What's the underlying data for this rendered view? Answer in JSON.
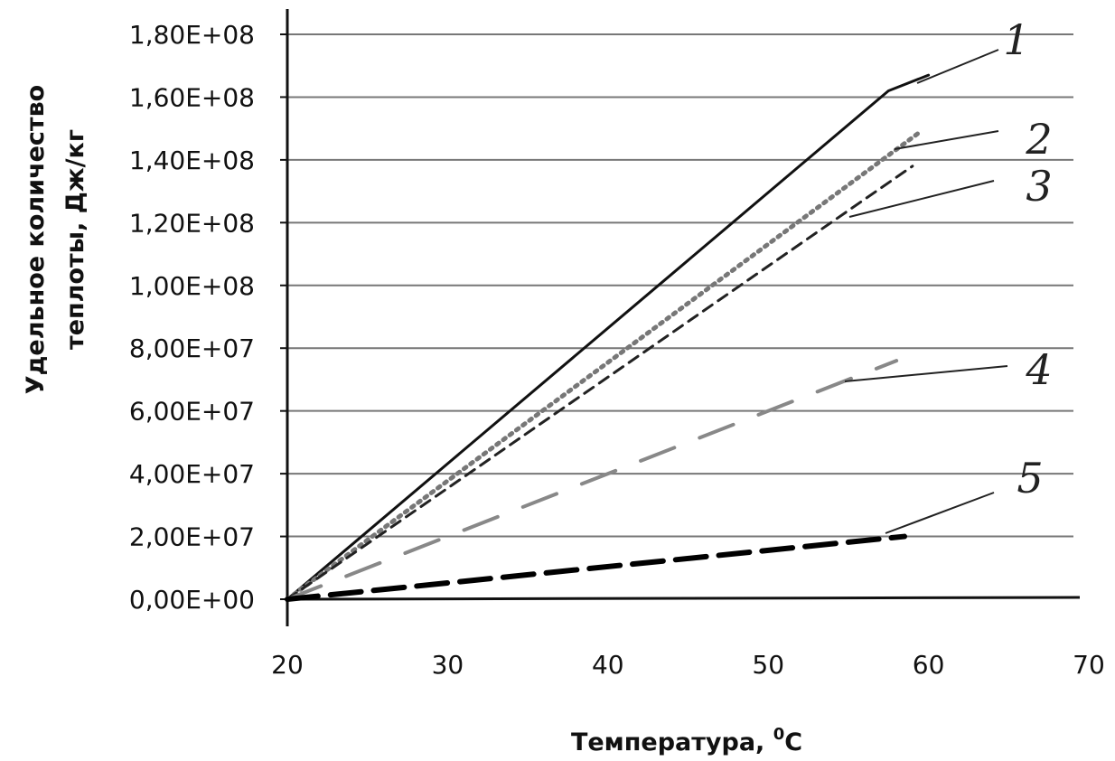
{
  "chart_data": {
    "type": "line",
    "title": "",
    "xlabel": "Температура, ",
    "xlabel_sup": "0",
    "xlabel_unit": "C",
    "ylabel_line1": "Удельное количество",
    "ylabel_line2": "теплоты, Дж/кг",
    "xlim": [
      20,
      70
    ],
    "ylim": [
      0,
      180000000
    ],
    "grid": "horizontal",
    "x_ticks": [
      20,
      30,
      40,
      50,
      60,
      70
    ],
    "x_tick_labels": [
      "20",
      "30",
      "40",
      "50",
      "60",
      "70"
    ],
    "y_ticks": [
      0,
      20000000,
      40000000,
      60000000,
      80000000,
      100000000,
      120000000,
      140000000,
      160000000,
      180000000
    ],
    "y_tick_labels": [
      "0,00E+00",
      "2,00E+07",
      "4,00E+07",
      "6,00E+07",
      "8,00E+07",
      "1,00E+08",
      "1,20E+08",
      "1,40E+08",
      "1,60E+08",
      "1,80E+08"
    ],
    "series": [
      {
        "name": "1",
        "style": "solid",
        "color": "#111111",
        "x": [
          20,
          57.5,
          60
        ],
        "y": [
          0,
          162000000,
          167000000
        ]
      },
      {
        "name": "2",
        "style": "dotted",
        "color": "#777777",
        "x": [
          20,
          59.5
        ],
        "y": [
          0,
          149000000
        ]
      },
      {
        "name": "3",
        "style": "dashed",
        "color": "#222222",
        "x": [
          20,
          59
        ],
        "y": [
          0,
          138000000
        ]
      },
      {
        "name": "4",
        "style": "long-dash",
        "color": "#888888",
        "x": [
          20,
          58
        ],
        "y": [
          0,
          76000000
        ]
      },
      {
        "name": "5",
        "style": "heavy-dash",
        "color": "#000000",
        "x": [
          20,
          58.5
        ],
        "y": [
          0,
          20000000
        ]
      }
    ]
  }
}
